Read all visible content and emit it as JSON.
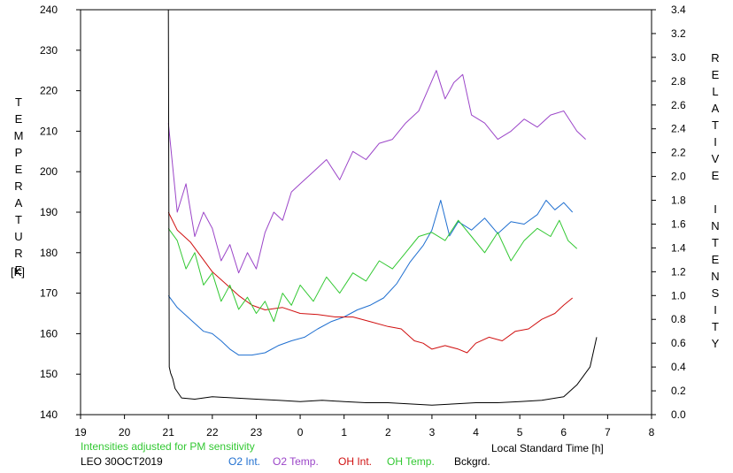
{
  "chart_data": {
    "type": "line",
    "left_axis": {
      "label": "TEMPERATURE",
      "unit": "[K]",
      "range": [
        140,
        240
      ],
      "ticks": [
        140,
        150,
        160,
        170,
        180,
        190,
        200,
        210,
        220,
        230,
        240
      ]
    },
    "right_axis": {
      "label": "RELATIVE INTENSITY",
      "range": [
        0.0,
        3.4
      ],
      "ticks": [
        "0.0",
        "0.2",
        "0.4",
        "0.6",
        "0.8",
        "1.0",
        "1.2",
        "1.4",
        "1.6",
        "1.8",
        "2.0",
        "2.2",
        "2.4",
        "2.6",
        "2.8",
        "3.0",
        "3.2",
        "3.4"
      ]
    },
    "x_axis": {
      "label": "Local Standard Time [h]",
      "range": [
        19,
        32
      ],
      "tick_labels": [
        "19",
        "20",
        "21",
        "22",
        "23",
        "0",
        "1",
        "2",
        "3",
        "4",
        "5",
        "6",
        "7",
        "8"
      ]
    },
    "note": "Intensities adjusted for PM sensitivity",
    "station": "LEO 30OCT2019",
    "series": [
      {
        "name": "O2 Int.",
        "color": "#1f6fd0",
        "axis": "right",
        "points": [
          [
            21.0,
            1.0
          ],
          [
            21.2,
            0.9
          ],
          [
            21.5,
            0.8
          ],
          [
            21.8,
            0.7
          ],
          [
            22.0,
            0.68
          ],
          [
            22.2,
            0.62
          ],
          [
            22.4,
            0.55
          ],
          [
            22.6,
            0.5
          ],
          [
            22.9,
            0.5
          ],
          [
            23.2,
            0.52
          ],
          [
            23.5,
            0.58
          ],
          [
            23.8,
            0.62
          ],
          [
            24.1,
            0.65
          ],
          [
            24.4,
            0.72
          ],
          [
            24.7,
            0.78
          ],
          [
            25.0,
            0.82
          ],
          [
            25.3,
            0.88
          ],
          [
            25.6,
            0.92
          ],
          [
            25.9,
            0.98
          ],
          [
            26.2,
            1.1
          ],
          [
            26.5,
            1.28
          ],
          [
            26.8,
            1.42
          ],
          [
            27.0,
            1.55
          ],
          [
            27.2,
            1.8
          ],
          [
            27.4,
            1.5
          ],
          [
            27.6,
            1.62
          ],
          [
            27.9,
            1.55
          ],
          [
            28.2,
            1.65
          ],
          [
            28.5,
            1.52
          ],
          [
            28.8,
            1.62
          ],
          [
            29.1,
            1.6
          ],
          [
            29.4,
            1.68
          ],
          [
            29.6,
            1.8
          ],
          [
            29.8,
            1.72
          ],
          [
            30.0,
            1.78
          ],
          [
            30.2,
            1.7
          ]
        ]
      },
      {
        "name": "O2 Temp.",
        "color": "#9b45c8",
        "axis": "left",
        "points": [
          [
            21.0,
            212
          ],
          [
            21.2,
            190
          ],
          [
            21.4,
            197
          ],
          [
            21.6,
            184
          ],
          [
            21.8,
            190
          ],
          [
            22.0,
            186
          ],
          [
            22.2,
            178
          ],
          [
            22.4,
            182
          ],
          [
            22.6,
            175
          ],
          [
            22.8,
            180
          ],
          [
            23.0,
            176
          ],
          [
            23.2,
            185
          ],
          [
            23.4,
            190
          ],
          [
            23.6,
            188
          ],
          [
            23.8,
            195
          ],
          [
            24.0,
            197
          ],
          [
            24.3,
            200
          ],
          [
            24.6,
            203
          ],
          [
            24.9,
            198
          ],
          [
            25.2,
            205
          ],
          [
            25.5,
            203
          ],
          [
            25.8,
            207
          ],
          [
            26.1,
            208
          ],
          [
            26.4,
            212
          ],
          [
            26.7,
            215
          ],
          [
            26.9,
            220
          ],
          [
            27.1,
            225
          ],
          [
            27.3,
            218
          ],
          [
            27.5,
            222
          ],
          [
            27.7,
            224
          ],
          [
            27.9,
            214
          ],
          [
            28.2,
            212
          ],
          [
            28.5,
            208
          ],
          [
            28.8,
            210
          ],
          [
            29.1,
            213
          ],
          [
            29.4,
            211
          ],
          [
            29.7,
            214
          ],
          [
            30.0,
            215
          ],
          [
            30.3,
            210
          ],
          [
            30.5,
            208
          ]
        ]
      },
      {
        "name": "OH Int.",
        "color": "#d01010",
        "axis": "right",
        "points": [
          [
            21.0,
            1.7
          ],
          [
            21.2,
            1.55
          ],
          [
            21.5,
            1.45
          ],
          [
            21.8,
            1.3
          ],
          [
            22.0,
            1.2
          ],
          [
            22.3,
            1.1
          ],
          [
            22.6,
            1.0
          ],
          [
            22.9,
            0.92
          ],
          [
            23.2,
            0.88
          ],
          [
            23.6,
            0.9
          ],
          [
            24.0,
            0.85
          ],
          [
            24.4,
            0.84
          ],
          [
            24.8,
            0.82
          ],
          [
            25.2,
            0.82
          ],
          [
            25.6,
            0.78
          ],
          [
            26.0,
            0.74
          ],
          [
            26.3,
            0.72
          ],
          [
            26.6,
            0.62
          ],
          [
            26.8,
            0.6
          ],
          [
            27.0,
            0.55
          ],
          [
            27.3,
            0.58
          ],
          [
            27.6,
            0.55
          ],
          [
            27.8,
            0.52
          ],
          [
            28.0,
            0.6
          ],
          [
            28.3,
            0.65
          ],
          [
            28.6,
            0.62
          ],
          [
            28.9,
            0.7
          ],
          [
            29.2,
            0.72
          ],
          [
            29.5,
            0.8
          ],
          [
            29.8,
            0.85
          ],
          [
            30.0,
            0.92
          ],
          [
            30.2,
            0.98
          ]
        ]
      },
      {
        "name": "OH Temp.",
        "color": "#32c832",
        "axis": "left",
        "points": [
          [
            21.0,
            186
          ],
          [
            21.2,
            183
          ],
          [
            21.4,
            176
          ],
          [
            21.6,
            180
          ],
          [
            21.8,
            172
          ],
          [
            22.0,
            175
          ],
          [
            22.2,
            168
          ],
          [
            22.4,
            172
          ],
          [
            22.6,
            166
          ],
          [
            22.8,
            169
          ],
          [
            23.0,
            165
          ],
          [
            23.2,
            168
          ],
          [
            23.4,
            163
          ],
          [
            23.6,
            170
          ],
          [
            23.8,
            167
          ],
          [
            24.0,
            172
          ],
          [
            24.3,
            168
          ],
          [
            24.6,
            174
          ],
          [
            24.9,
            170
          ],
          [
            25.2,
            175
          ],
          [
            25.5,
            173
          ],
          [
            25.8,
            178
          ],
          [
            26.1,
            176
          ],
          [
            26.4,
            180
          ],
          [
            26.7,
            184
          ],
          [
            27.0,
            185
          ],
          [
            27.3,
            183
          ],
          [
            27.6,
            188
          ],
          [
            27.9,
            184
          ],
          [
            28.2,
            180
          ],
          [
            28.5,
            185
          ],
          [
            28.8,
            178
          ],
          [
            29.1,
            183
          ],
          [
            29.4,
            186
          ],
          [
            29.7,
            184
          ],
          [
            29.9,
            188
          ],
          [
            30.1,
            183
          ],
          [
            30.3,
            181
          ]
        ]
      },
      {
        "name": "Bckgrd.",
        "color": "#000000",
        "axis": "right",
        "points": [
          [
            21.0,
            3.4
          ],
          [
            21.02,
            0.4
          ],
          [
            21.05,
            0.35
          ],
          [
            21.1,
            0.3
          ],
          [
            21.15,
            0.22
          ],
          [
            21.3,
            0.14
          ],
          [
            21.6,
            0.13
          ],
          [
            22.0,
            0.15
          ],
          [
            22.5,
            0.14
          ],
          [
            23.0,
            0.13
          ],
          [
            23.5,
            0.12
          ],
          [
            24.0,
            0.11
          ],
          [
            24.5,
            0.12
          ],
          [
            25.0,
            0.11
          ],
          [
            25.5,
            0.1
          ],
          [
            26.0,
            0.1
          ],
          [
            26.5,
            0.09
          ],
          [
            27.0,
            0.08
          ],
          [
            27.5,
            0.09
          ],
          [
            28.0,
            0.1
          ],
          [
            28.5,
            0.1
          ],
          [
            29.0,
            0.11
          ],
          [
            29.5,
            0.12
          ],
          [
            30.0,
            0.15
          ],
          [
            30.3,
            0.25
          ],
          [
            30.6,
            0.4
          ],
          [
            30.75,
            0.65
          ]
        ]
      }
    ]
  }
}
